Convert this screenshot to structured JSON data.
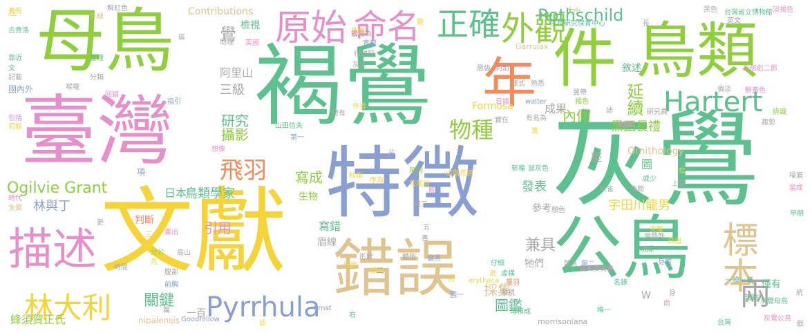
{
  "palette": {
    "green": "#8fce3c",
    "teal": "#5cc18f",
    "yellow": "#f5d43a",
    "pink": "#e690c9",
    "orange": "#f58a5a",
    "blue": "#8a9fd1",
    "tan": "#e0c48f",
    "gray": "#a8a8a8"
  },
  "words": [
    {
      "t": "灰鷽",
      "c": "teal"
    },
    {
      "t": "褐鷽",
      "c": "teal"
    },
    {
      "t": "特徵",
      "c": "blue"
    },
    {
      "t": "文獻",
      "c": "yellow"
    },
    {
      "t": "臺灣",
      "c": "pink"
    },
    {
      "t": "母鳥",
      "c": "green"
    },
    {
      "t": "公鳥",
      "c": "teal"
    },
    {
      "t": "鳥類",
      "c": "green"
    },
    {
      "t": "錯誤",
      "c": "tan"
    },
    {
      "t": "件",
      "c": "green"
    },
    {
      "t": "年",
      "c": "orange"
    },
    {
      "t": "描述",
      "c": "pink"
    },
    {
      "t": "原始",
      "c": "pink"
    },
    {
      "t": "命名",
      "c": "pink"
    },
    {
      "t": "正確",
      "c": "teal"
    },
    {
      "t": "外觀",
      "c": "green"
    },
    {
      "t": "標本",
      "c": "tan"
    },
    {
      "t": "Hartert",
      "c": "teal"
    },
    {
      "t": "Pyrrhula",
      "c": "blue"
    },
    {
      "t": "林大利",
      "c": "yellow"
    },
    {
      "t": "物種",
      "c": "green"
    },
    {
      "t": "飛羽",
      "c": "orange"
    },
    {
      "t": "Ogilvie Grant",
      "c": "green"
    },
    {
      "t": "Rothschild",
      "c": "teal"
    },
    {
      "t": "兩",
      "c": "gray"
    },
    {
      "t": "延續",
      "c": "green"
    },
    {
      "t": "內側",
      "c": "green"
    },
    {
      "t": "黑田長禮",
      "c": "green"
    },
    {
      "t": "研究",
      "c": "teal"
    },
    {
      "t": "攝影",
      "c": "green"
    },
    {
      "t": "寫成",
      "c": "green"
    },
    {
      "t": "日本",
      "c": "teal"
    },
    {
      "t": "鳥類學家",
      "c": "teal"
    },
    {
      "t": "林與丁",
      "c": "blue"
    },
    {
      "t": "引用",
      "c": "pink"
    },
    {
      "t": "關鍵",
      "c": "teal"
    },
    {
      "t": "宇田川龍男",
      "c": "yellow"
    },
    {
      "t": "發表",
      "c": "teal"
    },
    {
      "t": "兼具",
      "c": "gray"
    },
    {
      "t": "採集",
      "c": "tan"
    },
    {
      "t": "圖鑑",
      "c": "teal"
    },
    {
      "t": "蜂須賀正氏",
      "c": "green"
    },
    {
      "t": "三級",
      "c": "gray"
    },
    {
      "t": "阿里山",
      "c": "gray"
    },
    {
      "t": "鷽",
      "c": "gray"
    },
    {
      "t": "成果",
      "c": "gray"
    },
    {
      "t": "Contributions",
      "c": "tan"
    },
    {
      "t": "Formosa",
      "c": "yellow"
    },
    {
      "t": "Ornithology",
      "c": "tan"
    },
    {
      "t": "寫錯",
      "c": "teal"
    },
    {
      "t": "判斷",
      "c": "orange"
    },
    {
      "t": "眉線",
      "c": "gray"
    },
    {
      "t": "牠們",
      "c": "gray"
    },
    {
      "t": "參考",
      "c": "gray"
    },
    {
      "t": "僅有",
      "c": "teal"
    },
    {
      "t": "一百",
      "c": "gray"
    },
    {
      "t": "生物",
      "c": "green"
    },
    {
      "t": "nipalensis",
      "c": "tan"
    },
    {
      "t": "Goodfellow",
      "c": "blue"
    },
    {
      "t": "morrisoniana",
      "c": "gray"
    },
    {
      "t": "Garrulax",
      "c": "tan"
    },
    {
      "t": "walter",
      "c": "blue"
    },
    {
      "t": "erythaca",
      "c": "yellow"
    },
    {
      "t": "Ernst",
      "c": "blue"
    },
    {
      "t": "灰鷽公鳥",
      "c": "pink"
    },
    {
      "t": "國內外",
      "c": "blue"
    },
    {
      "t": "檢視",
      "c": "teal"
    },
    {
      "t": "敘述",
      "c": "teal"
    },
    {
      "t": "鮮紅色",
      "c": "gray"
    },
    {
      "t": "共有",
      "c": "yellow"
    },
    {
      "t": "古貴洛",
      "c": "teal"
    },
    {
      "t": "黑色",
      "c": "gray"
    },
    {
      "t": "台灣省立博物館",
      "c": "teal"
    },
    {
      "t": "淡褐色",
      "c": "pink"
    },
    {
      "t": "生物研究保育中心",
      "c": "teal"
    },
    {
      "t": "山田信夫",
      "c": "teal"
    },
    {
      "t": "山階芳麿",
      "c": "yellow"
    },
    {
      "t": "農業委員會",
      "c": "pink"
    },
    {
      "t": "一模一樣",
      "c": "teal"
    },
    {
      "t": "折居彪二郎",
      "c": "pink"
    },
    {
      "t": "灰鷽母鳥",
      "c": "teal"
    },
    {
      "t": "台灣",
      "c": "teal"
    },
    {
      "t": "時代",
      "c": "pink"
    },
    {
      "t": "金翼",
      "c": "tan"
    },
    {
      "t": "記載",
      "c": "gray"
    },
    {
      "t": "喉嚨",
      "c": "gray"
    },
    {
      "t": "包括",
      "c": "pink"
    },
    {
      "t": "初級",
      "c": "yellow"
    },
    {
      "t": "整理",
      "c": "teal"
    },
    {
      "t": "分類",
      "c": "gray"
    },
    {
      "t": "指引",
      "c": "blue"
    },
    {
      "t": "回錯",
      "c": "pink"
    },
    {
      "t": "腹部",
      "c": "gray"
    },
    {
      "t": "前胸",
      "c": "blue"
    },
    {
      "t": "高山",
      "c": "gray"
    },
    {
      "t": "分公",
      "c": "green"
    },
    {
      "t": "時間",
      "c": "gray"
    },
    {
      "t": "先",
      "c": "yellow"
    },
    {
      "t": "項",
      "c": "blue"
    },
    {
      "t": "想像",
      "c": "pink"
    },
    {
      "t": "作者",
      "c": "yellow"
    },
    {
      "t": "特有",
      "c": "gray"
    },
    {
      "t": "第一",
      "c": "blue"
    },
    {
      "t": "秋雄",
      "c": "yellow"
    },
    {
      "t": "序為",
      "c": "yellow"
    },
    {
      "t": "尾羽",
      "c": "green"
    },
    {
      "t": "灰尾羽",
      "c": "yellow"
    },
    {
      "t": "鼠灰色",
      "c": "teal"
    },
    {
      "t": "新種",
      "c": "teal"
    },
    {
      "t": "或少",
      "c": "teal"
    },
    {
      "t": "查閱",
      "c": "gray"
    },
    {
      "t": "上身",
      "c": "gray"
    },
    {
      "t": "早期",
      "c": "teal"
    },
    {
      "t": "當成",
      "c": "pink"
    },
    {
      "t": "噪眉",
      "c": "gray"
    },
    {
      "t": "辨識",
      "c": "green"
    },
    {
      "t": "趨勢",
      "c": "gray"
    },
    {
      "t": "鮮黃色",
      "c": "pink"
    },
    {
      "t": "研究員",
      "c": "gray"
    },
    {
      "t": "觀察",
      "c": "pink"
    },
    {
      "t": "賞鳥",
      "c": "gray"
    },
    {
      "t": "完整",
      "c": "yellow"
    },
    {
      "t": "白眉",
      "c": "yellow"
    },
    {
      "t": "功課",
      "c": "teal"
    },
    {
      "t": "身體",
      "c": "blue"
    },
    {
      "t": "名錄",
      "c": "teal"
    },
    {
      "t": "偏腦筋",
      "c": "gray"
    },
    {
      "t": "唯一",
      "c": "teal"
    },
    {
      "t": "斑點",
      "c": "teal"
    },
    {
      "t": "體型",
      "c": "gray"
    },
    {
      "t": "討論",
      "c": "yellow"
    },
    {
      "t": "結論",
      "c": "yellow"
    },
    {
      "t": "形狀",
      "c": "gray"
    },
    {
      "t": "偏黑",
      "c": "blue"
    },
    {
      "t": "虛構",
      "c": "teal"
    },
    {
      "t": "覆羽",
      "c": "orange"
    },
    {
      "t": "仔細",
      "c": "teal"
    },
    {
      "t": "發現",
      "c": "gray"
    },
    {
      "t": "母和成",
      "c": "teal"
    },
    {
      "t": "實在",
      "c": "gray"
    },
    {
      "t": "錯認為",
      "c": "gray"
    },
    {
      "t": "背部",
      "c": "blue"
    },
    {
      "t": "行政院",
      "c": "gray"
    },
    {
      "t": "書籍",
      "c": "pink"
    },
    {
      "t": "英國",
      "c": "pink"
    },
    {
      "t": "助理",
      "c": "gray"
    },
    {
      "t": "灰色",
      "c": "gray"
    },
    {
      "t": "鳥",
      "c": "yellow"
    },
    {
      "t": "層級",
      "c": "gray"
    },
    {
      "t": "判別",
      "c": "blue"
    },
    {
      "t": "樣式",
      "c": "gray"
    },
    {
      "t": "日據",
      "c": "pink"
    },
    {
      "t": "熟悉",
      "c": "gray"
    },
    {
      "t": "翼帶",
      "c": "gray"
    },
    {
      "t": "褐色",
      "c": "green"
    },
    {
      "t": "偏淡",
      "c": "gray"
    },
    {
      "t": "英文",
      "c": "gray"
    },
    {
      "t": "外線",
      "c": "tan"
    },
    {
      "t": "大小",
      "c": "green"
    },
    {
      "t": "靠近",
      "c": "teal"
    },
    {
      "t": "文",
      "c": "teal"
    },
    {
      "t": "左",
      "c": "yellow"
    },
    {
      "t": "更",
      "c": "gray"
    },
    {
      "t": "三",
      "c": "yellow"
    },
    {
      "t": "片",
      "c": "gray"
    },
    {
      "t": "五",
      "c": "gray"
    },
    {
      "t": "書",
      "c": "gray"
    },
    {
      "t": "赴",
      "c": "yellow"
    },
    {
      "t": "右",
      "c": "teal"
    },
    {
      "t": "幼",
      "c": "yellow"
    },
    {
      "t": "時",
      "c": "gray"
    },
    {
      "t": "尚",
      "c": "pink"
    },
    {
      "t": "獻",
      "c": "gray"
    },
    {
      "t": "W",
      "c": "gray"
    },
    {
      "t": "整",
      "c": "gray"
    },
    {
      "t": "藍",
      "c": "pink"
    },
    {
      "t": "圖",
      "c": "teal"
    },
    {
      "t": "異",
      "c": "yellow"
    },
    {
      "t": "位",
      "c": "yellow"
    },
    {
      "t": "長",
      "c": "gray"
    },
    {
      "t": "誌",
      "c": "gray"
    },
    {
      "t": "二",
      "c": "blue"
    },
    {
      "t": "篇",
      "c": "gray"
    },
    {
      "t": "統",
      "c": "gray"
    },
    {
      "t": "顏色",
      "c": "gray"
    },
    {
      "t": "區",
      "c": "gray"
    },
    {
      "t": "身",
      "c": "gray"
    },
    {
      "t": "圖三",
      "c": "gray"
    },
    {
      "t": "畫出",
      "c": "pink"
    },
    {
      "t": "有名為",
      "c": "gray"
    },
    {
      "t": "外國",
      "c": "yellow"
    },
    {
      "t": "鏡",
      "c": "yellow"
    },
    {
      "t": "圖一",
      "c": "blue"
    },
    {
      "t": "圖二",
      "c": "blue"
    },
    {
      "t": "灰雀",
      "c": "gray"
    }
  ]
}
